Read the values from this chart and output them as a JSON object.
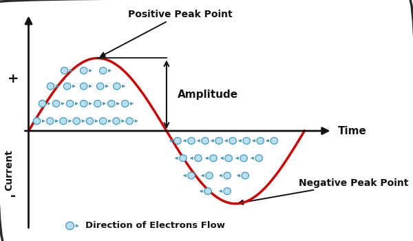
{
  "background_color": "#ffffff",
  "border_color": "#2a2a2a",
  "sine_color": "#cc0000",
  "sine_linewidth": 2.5,
  "axis_color": "#111111",
  "xlabel": "Time",
  "ylabel": "Current",
  "plus_label": "+",
  "minus_label": "-",
  "positive_peak_label": "Positive Peak Point",
  "negative_peak_label": "Negative Peak Point",
  "amplitude_label": "Amplitude",
  "legend_label": "Direction of Electrons Flow",
  "electron_fill": "#b8dff0",
  "electron_edge": "#4499bb",
  "figsize": [
    6.0,
    3.5
  ],
  "dpi": 100,
  "xlim": [
    -1.0,
    11.5
  ],
  "ylim": [
    -4.2,
    5.0
  ],
  "yaxis_x": 0.0,
  "xaxis_y": 0.0,
  "pos_half_end": 5.0,
  "neg_half_end": 10.0,
  "amplitude": 2.8
}
